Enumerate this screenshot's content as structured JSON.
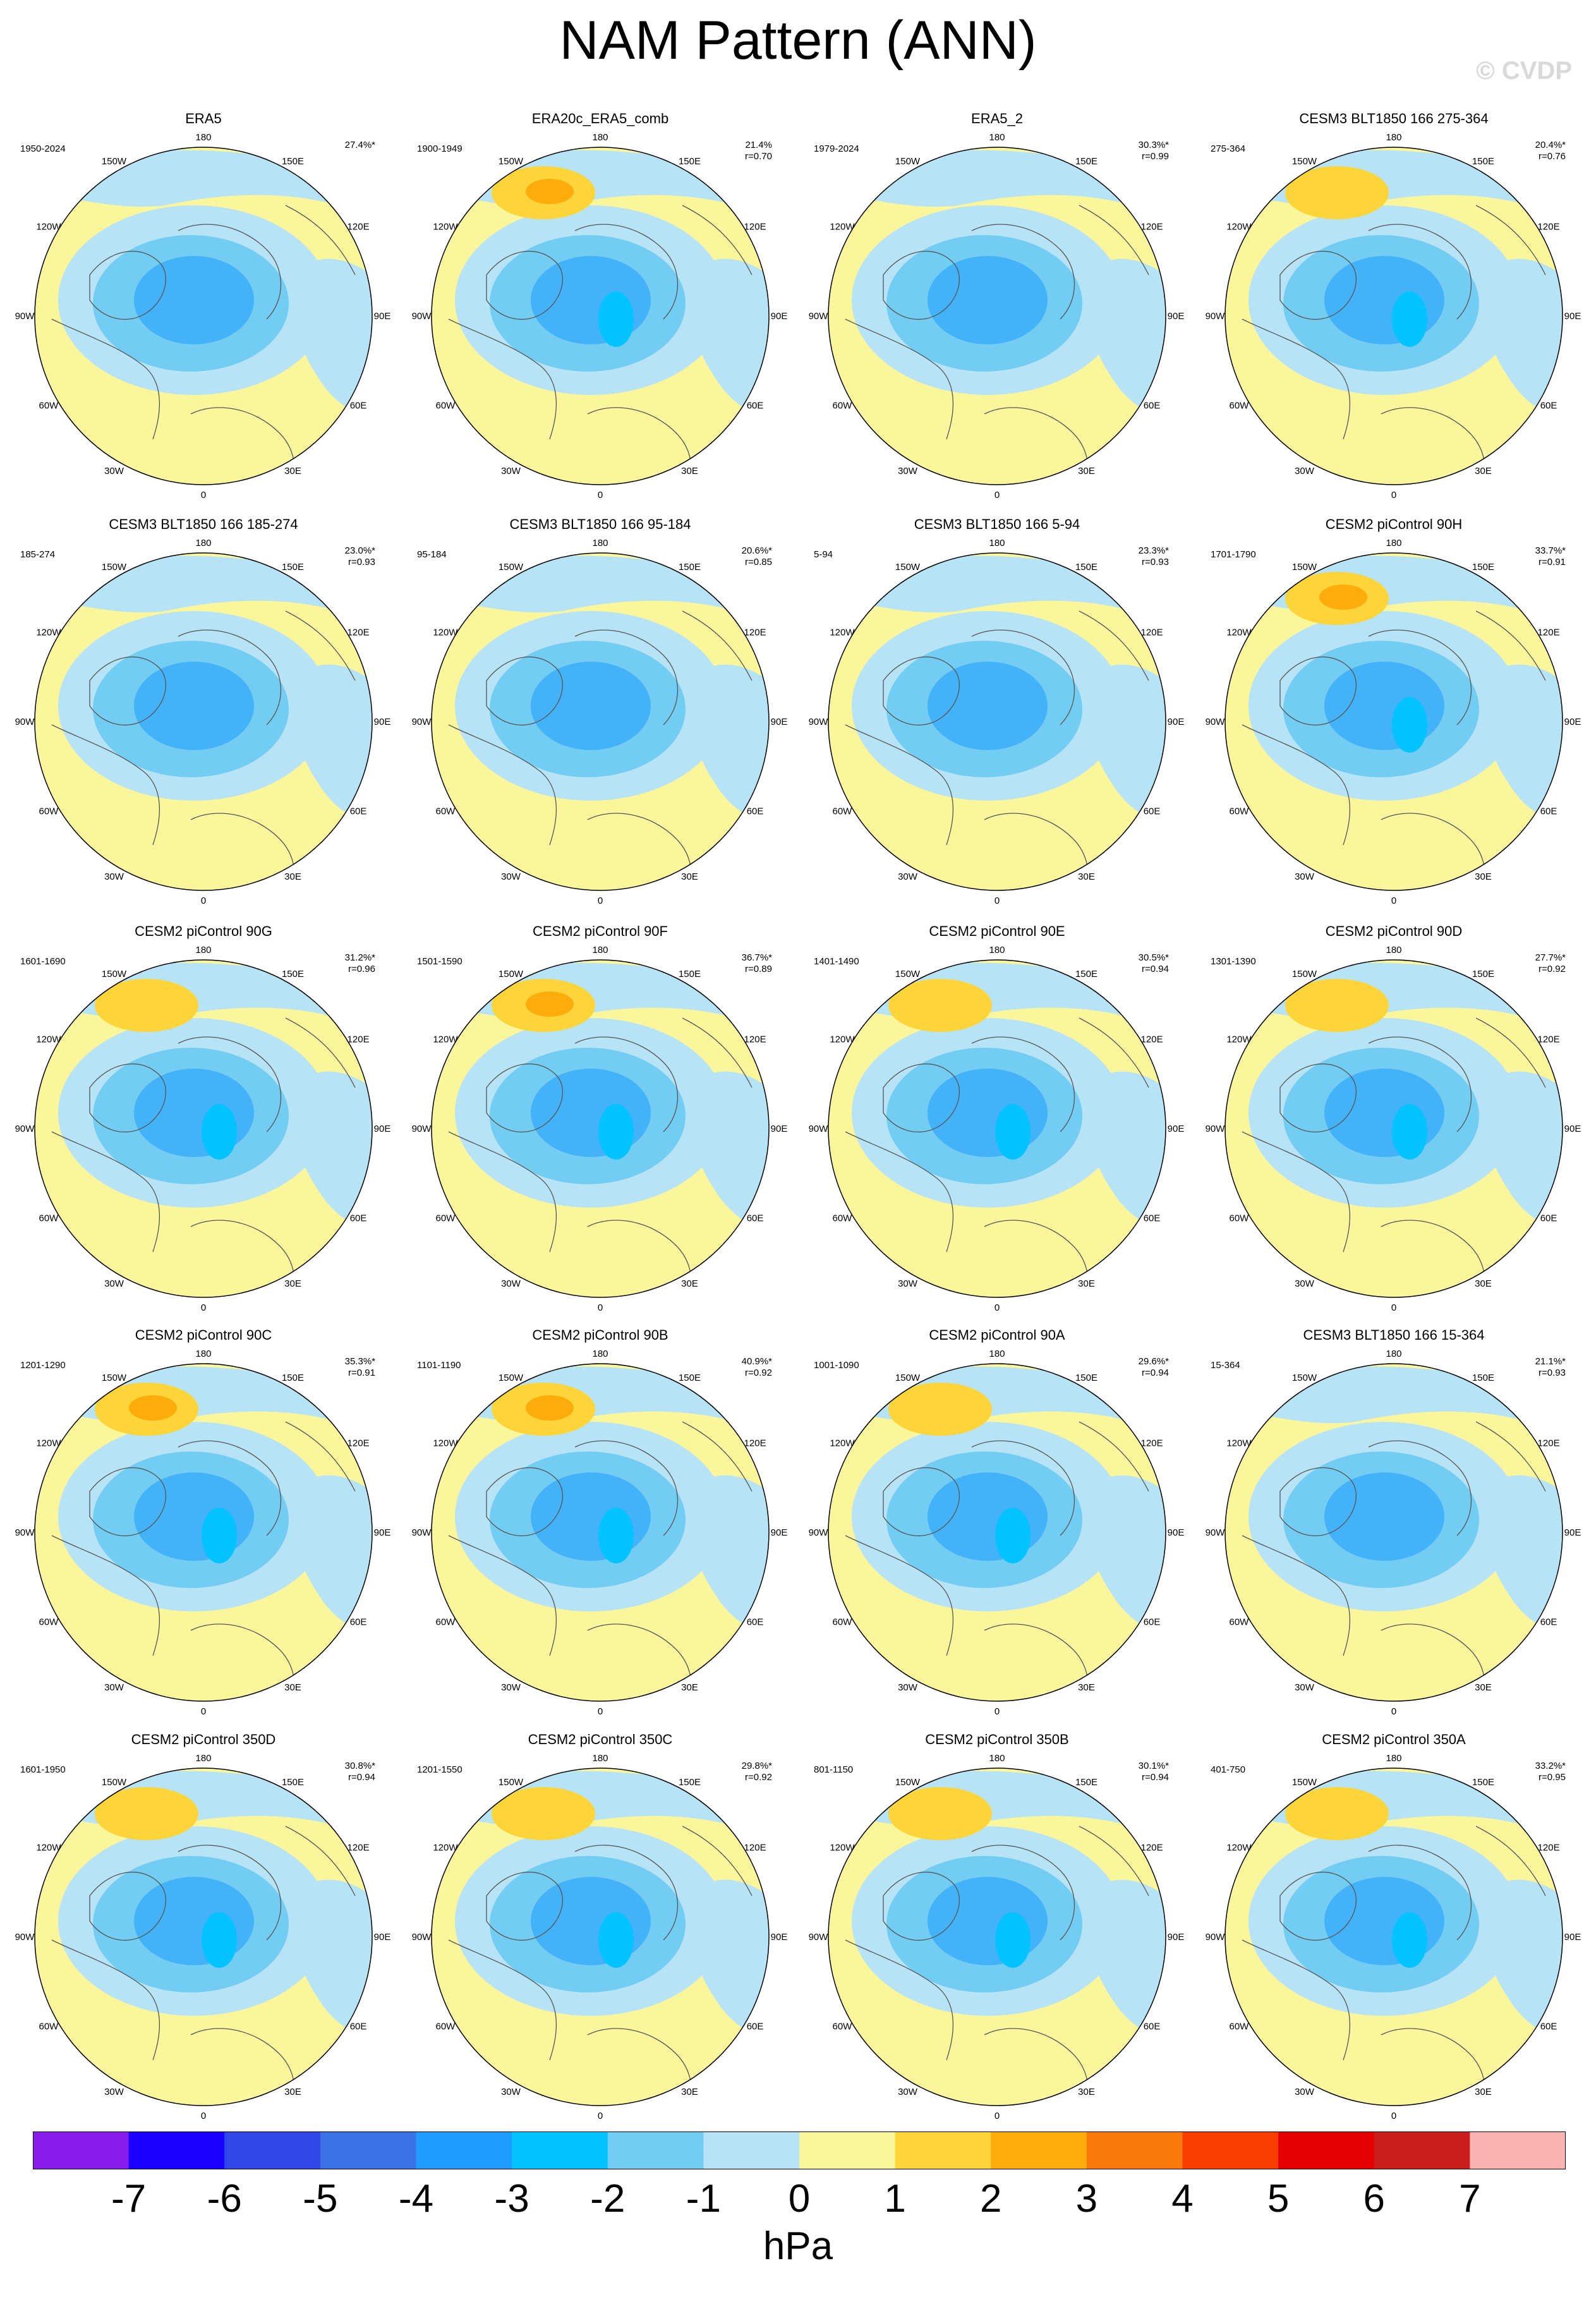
{
  "title": "NAM Pattern (ANN)",
  "watermark": "© CVDP",
  "units": "hPa",
  "colorbar": {
    "colors": [
      "#8a1cf0",
      "#1a00ff",
      "#2f47e8",
      "#3b72e6",
      "#1e9cff",
      "#00c3ff",
      "#73cdf2",
      "#b6e3f5",
      "#fbf59b",
      "#fdd538",
      "#fdac0b",
      "#fa7a0e",
      "#fb3c00",
      "#e40000",
      "#cc1d1d",
      "#fbb3b2"
    ],
    "ticks": [
      "-7",
      "-6",
      "-5",
      "-4",
      "-3",
      "-2",
      "-1",
      "0",
      "1",
      "2",
      "3",
      "4",
      "5",
      "6",
      "7"
    ]
  },
  "lon_labels": [
    "180",
    "150E",
    "120E",
    "90E",
    "60E",
    "30E",
    "0",
    "30W",
    "60W",
    "90W",
    "120W",
    "150W"
  ],
  "panels": [
    {
      "name": "ERA5",
      "period": "1950-2024",
      "pct": "27.4%*",
      "r": "",
      "high": 0
    },
    {
      "name": "ERA20c_ERA5_comb",
      "period": "1900-1949",
      "pct": "21.4%",
      "r": "r=0.70",
      "high": 2
    },
    {
      "name": "ERA5_2",
      "period": "1979-2024",
      "pct": "30.3%*",
      "r": "r=0.99",
      "high": 0
    },
    {
      "name": "CESM3 BLT1850 166 275-364",
      "period": "275-364",
      "pct": "20.4%*",
      "r": "r=0.76",
      "high": 1
    },
    {
      "name": "CESM3 BLT1850 166 185-274",
      "period": "185-274",
      "pct": "23.0%*",
      "r": "r=0.93",
      "high": 0
    },
    {
      "name": "CESM3 BLT1850 166 95-184",
      "period": "95-184",
      "pct": "20.6%*",
      "r": "r=0.85",
      "high": 0
    },
    {
      "name": "CESM3 BLT1850 166 5-94",
      "period": "5-94",
      "pct": "23.3%*",
      "r": "r=0.93",
      "high": 0
    },
    {
      "name": "CESM2 piControl 90H",
      "period": "1701-1790",
      "pct": "33.7%*",
      "r": "r=0.91",
      "high": 2
    },
    {
      "name": "CESM2 piControl 90G",
      "period": "1601-1690",
      "pct": "31.2%*",
      "r": "r=0.96",
      "high": 1
    },
    {
      "name": "CESM2 piControl 90F",
      "period": "1501-1590",
      "pct": "36.7%*",
      "r": "r=0.89",
      "high": 2
    },
    {
      "name": "CESM2 piControl 90E",
      "period": "1401-1490",
      "pct": "30.5%*",
      "r": "r=0.94",
      "high": 1
    },
    {
      "name": "CESM2 piControl 90D",
      "period": "1301-1390",
      "pct": "27.7%*",
      "r": "r=0.92",
      "high": 1
    },
    {
      "name": "CESM2 piControl 90C",
      "period": "1201-1290",
      "pct": "35.3%*",
      "r": "r=0.91",
      "high": 2
    },
    {
      "name": "CESM2 piControl 90B",
      "period": "1101-1190",
      "pct": "40.9%*",
      "r": "r=0.92",
      "high": 2
    },
    {
      "name": "CESM2 piControl 90A",
      "period": "1001-1090",
      "pct": "29.6%*",
      "r": "r=0.94",
      "high": 1
    },
    {
      "name": "CESM3 BLT1850 166 15-364",
      "period": "15-364",
      "pct": "21.1%*",
      "r": "r=0.93",
      "high": 0
    },
    {
      "name": "CESM2 piControl 350D",
      "period": "1601-1950",
      "pct": "30.8%*",
      "r": "r=0.94",
      "high": 1
    },
    {
      "name": "CESM2 piControl 350C",
      "period": "1201-1550",
      "pct": "29.8%*",
      "r": "r=0.92",
      "high": 1
    },
    {
      "name": "CESM2 piControl 350B",
      "period": "801-1150",
      "pct": "30.1%*",
      "r": "r=0.94",
      "high": 1
    },
    {
      "name": "CESM2 piControl 350A",
      "period": "401-750",
      "pct": "33.2%*",
      "r": "r=0.95",
      "high": 1
    }
  ]
}
